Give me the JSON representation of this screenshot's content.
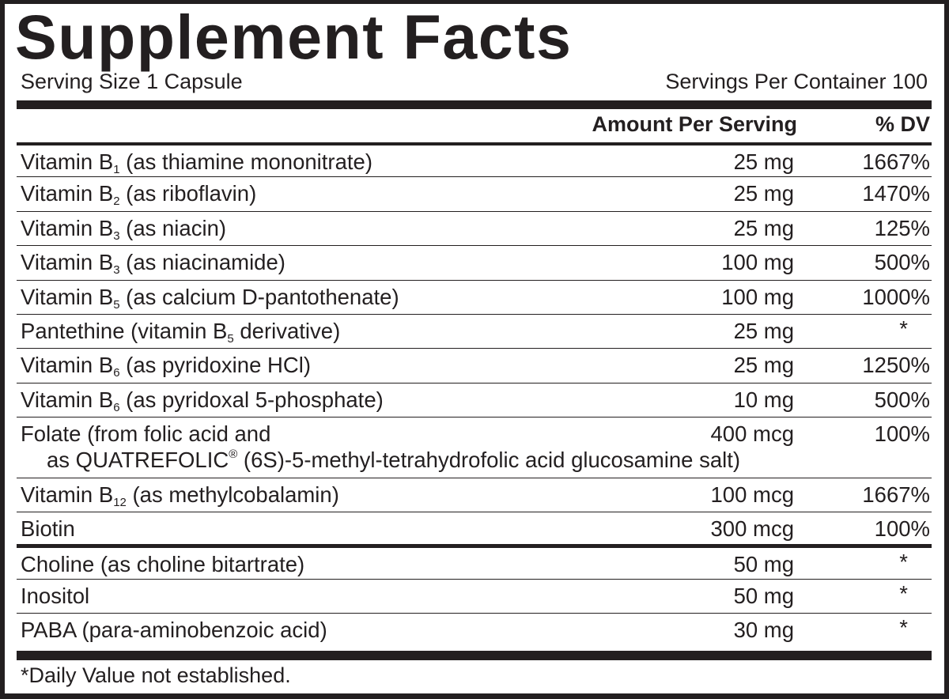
{
  "title": "Supplement Facts",
  "serving_size": "Serving Size 1 Capsule",
  "servings_per_container": "Servings Per Container 100",
  "header": {
    "amount": "Amount Per Serving",
    "dv": "% DV"
  },
  "rows_group1": [
    {
      "name": "Vitamin B",
      "sub": "1",
      "suffix": " (as thiamine mononitrate)",
      "amount": "25 mg",
      "dv": "1667%"
    },
    {
      "name": "Vitamin B",
      "sub": "2",
      "suffix": " (as riboflavin)",
      "amount": "25 mg",
      "dv": "1470%"
    },
    {
      "name": "Vitamin B",
      "sub": "3",
      "suffix": " (as niacin)",
      "amount": "25 mg",
      "dv": "125%"
    },
    {
      "name": "Vitamin B",
      "sub": "3",
      "suffix": " (as niacinamide)",
      "amount": "100 mg",
      "dv": "500%"
    },
    {
      "name": "Vitamin B",
      "sub": "5",
      "suffix": " (as calcium D-pantothenate)",
      "amount": "100 mg",
      "dv": "1000%"
    },
    {
      "name": "Pantethine (vitamin B",
      "sub": "5",
      "suffix": " derivative)",
      "amount": "25 mg",
      "dv": "*"
    },
    {
      "name": "Vitamin B",
      "sub": "6",
      "suffix": " (as pyridoxine HCl)",
      "amount": "25 mg",
      "dv": "1250%"
    },
    {
      "name": "Vitamin B",
      "sub": "6",
      "suffix": " (as pyridoxal 5-phosphate)",
      "amount": "10 mg",
      "dv": "500%"
    },
    {
      "name": "Folate (from folic acid and",
      "line2": "as QUATREFOLIC",
      "sup": "®",
      "line2_suffix": " (6S)-5-methyl-tetrahydrofolic acid glucosamine salt)",
      "amount": "400 mcg",
      "dv": "100%"
    },
    {
      "name": "Vitamin B",
      "sub": "12",
      "suffix": " (as methylcobalamin)",
      "amount": "100 mcg",
      "dv": "1667%"
    },
    {
      "name": "Biotin",
      "amount": "300 mcg",
      "dv": "100%"
    }
  ],
  "rows_group2": [
    {
      "name": "Choline (as choline bitartrate)",
      "amount": "50 mg",
      "dv": "*"
    },
    {
      "name": "Inositol",
      "amount": "50 mg",
      "dv": "*"
    },
    {
      "name": "PABA (para-aminobenzoic acid)",
      "amount": "30 mg",
      "dv": "*"
    }
  ],
  "footnote": "*Daily Value not established."
}
